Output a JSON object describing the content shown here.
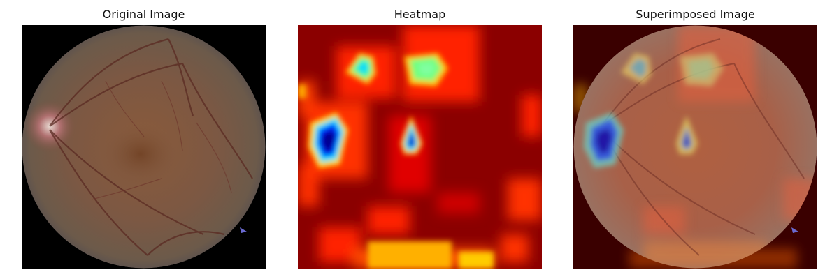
{
  "panels": [
    {
      "title": "Original Image"
    },
    {
      "title": "Heatmap"
    },
    {
      "title": "Superimposed Image"
    }
  ],
  "colors": {
    "background": "#ffffff",
    "fundus_base": "#7a5640",
    "fundus_edge": "#5a3d2e",
    "heatmap_base": "#8b0000",
    "heatmap_hot": "#ff0000",
    "heatmap_warm": "#ffcc00",
    "heatmap_cool": "#00c8ff",
    "heatmap_cold": "#0000cc"
  }
}
